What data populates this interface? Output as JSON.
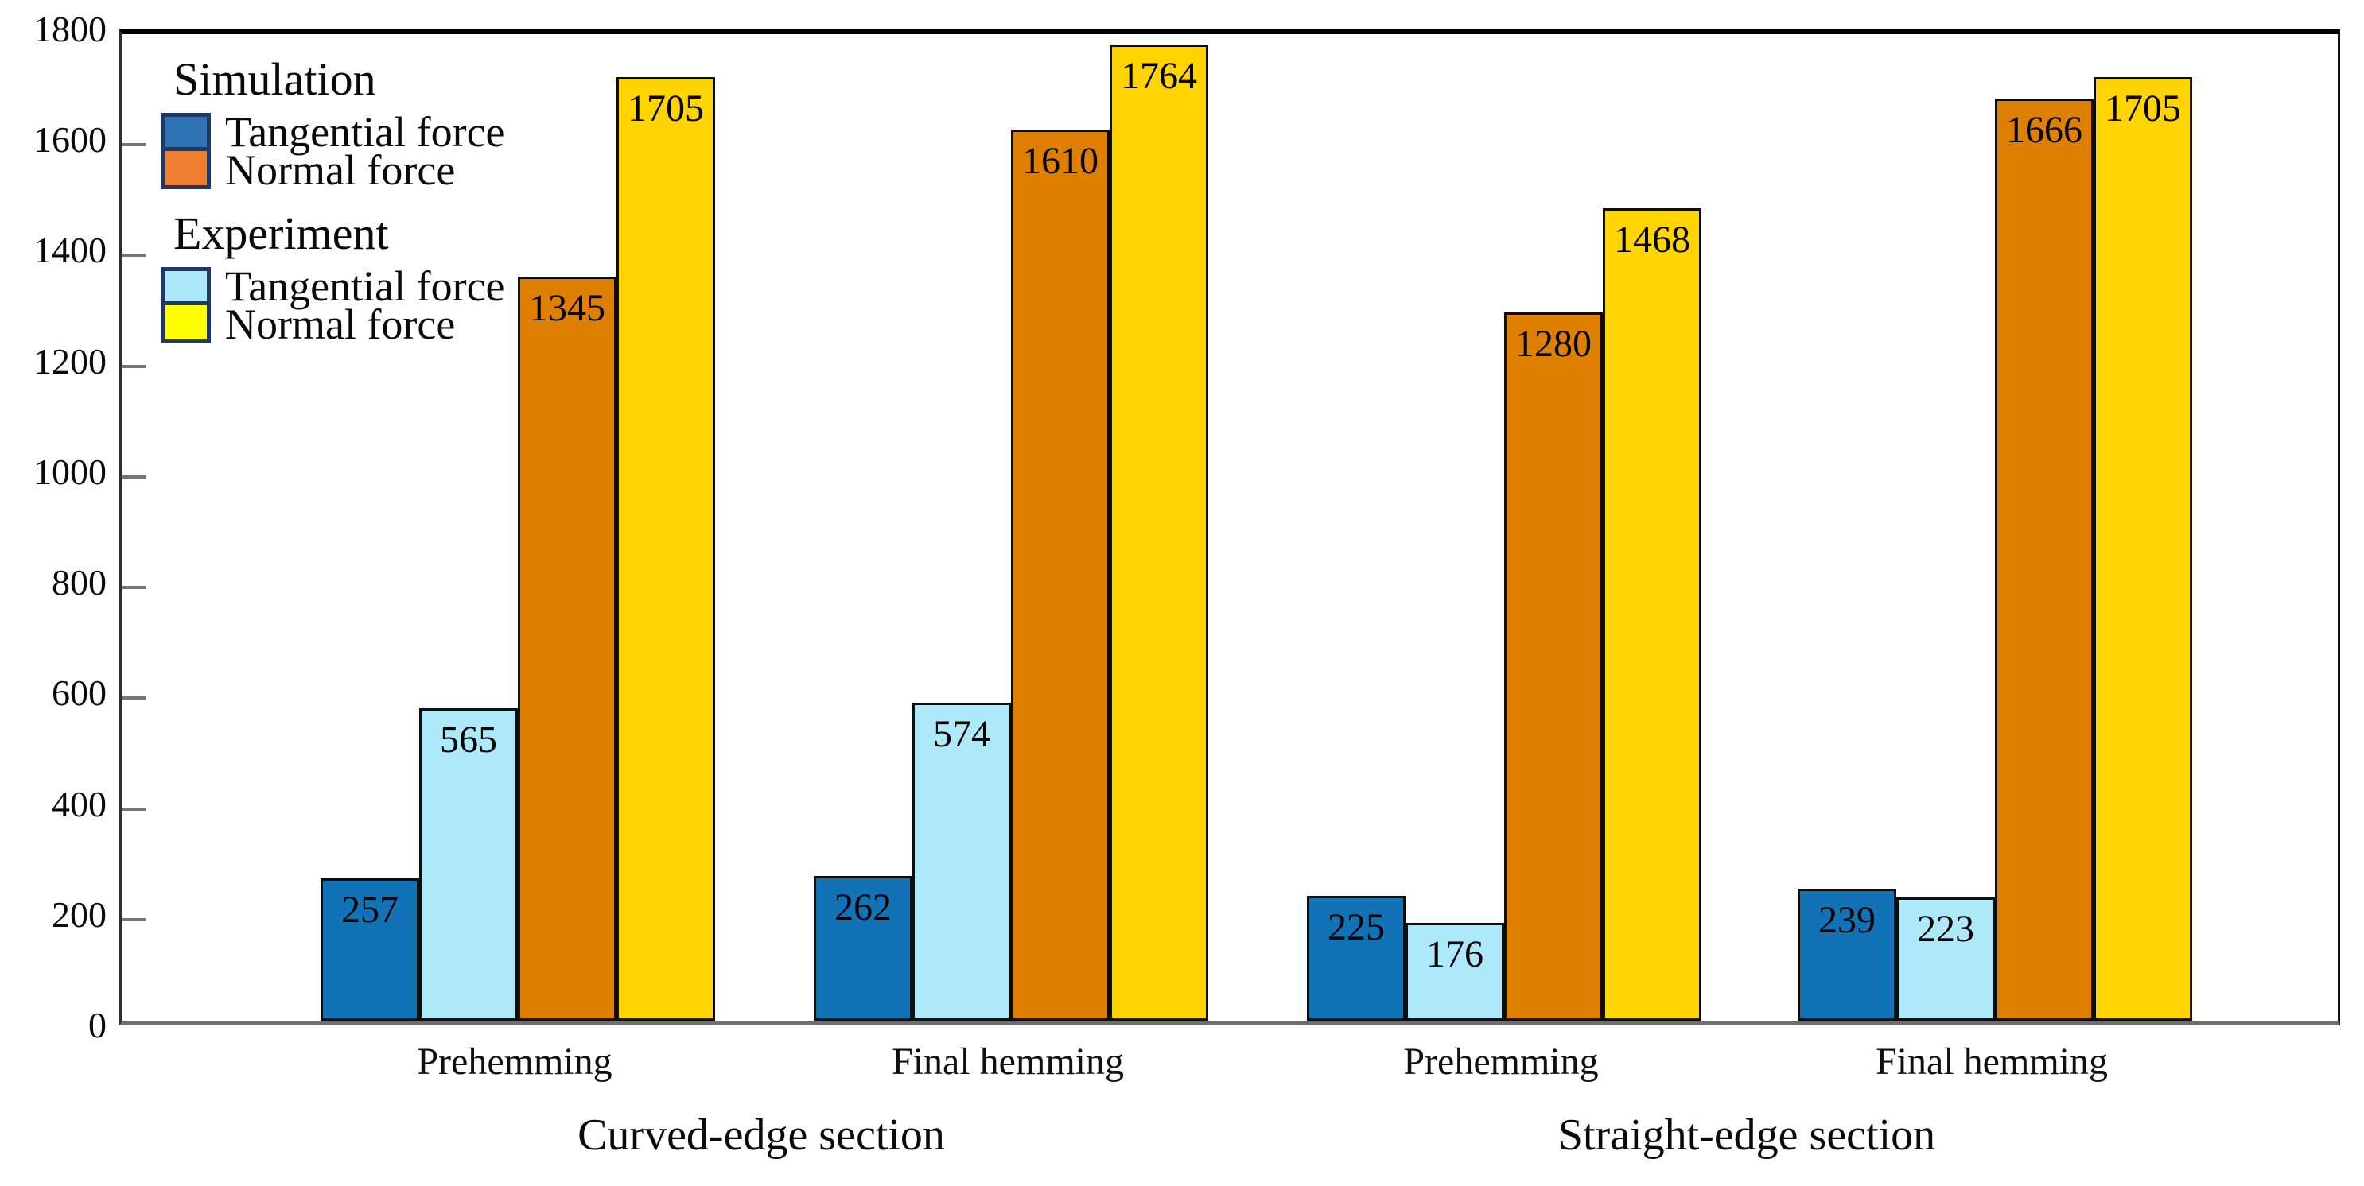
{
  "chart_data": {
    "type": "bar",
    "title": "",
    "ylim": [
      0,
      1800
    ],
    "y_ticks": [
      0,
      200,
      400,
      600,
      800,
      1000,
      1200,
      1400,
      1600,
      1800
    ],
    "grid": false,
    "legend_position": "top-left-inside",
    "categories": [
      "Prehemming",
      "Final hemming",
      "Prehemming",
      "Final hemming"
    ],
    "sections": [
      "Curved-edge section",
      "Straight-edge section"
    ],
    "series": [
      {
        "name": "Simulation Tangential force",
        "color": "#1272B6",
        "values": [
          257,
          262,
          225,
          239
        ]
      },
      {
        "name": "Experiment Tangential force",
        "color": "#AEE9FA",
        "values": [
          565,
          574,
          176,
          223
        ]
      },
      {
        "name": "Simulation Normal force",
        "color": "#DF7F00",
        "values": [
          1345,
          1610,
          1280,
          1666
        ]
      },
      {
        "name": "Experiment Normal force",
        "color": "#FFD400",
        "values": [
          1705,
          1764,
          1468,
          1705
        ]
      }
    ]
  },
  "legend": {
    "swatch_border": "#1F3864",
    "sections": [
      {
        "title": "Simulation",
        "items": [
          {
            "label": "Tangential force",
            "color": "#2E74B5"
          },
          {
            "label": "Normal force",
            "color": "#EE7D31"
          }
        ]
      },
      {
        "title": "Experiment",
        "items": [
          {
            "label": "Tangential force",
            "color": "#ABE6F9"
          },
          {
            "label": "Normal force",
            "color": "#FFFF00"
          }
        ]
      }
    ]
  }
}
